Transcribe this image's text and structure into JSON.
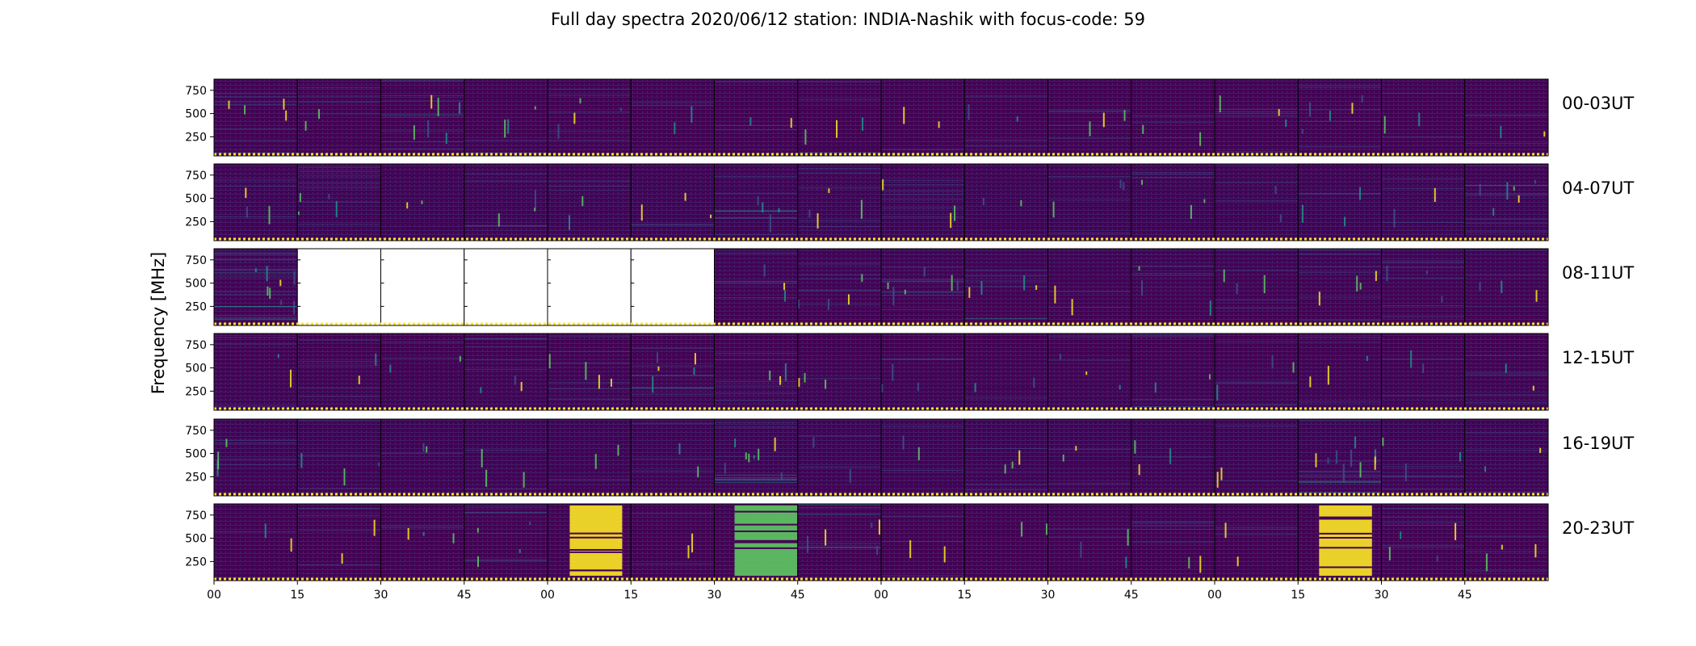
{
  "chart_data": {
    "type": "heatmap",
    "title": "Full day spectra 2020/06/12 station: INDIA-Nashik with focus-code: 59",
    "ylabel": "Frequency [MHz]",
    "xlabel": "",
    "y_ticks": [
      250,
      500,
      750
    ],
    "ylim": [
      45,
      870
    ],
    "x_tick_labels": [
      "00",
      "15",
      "30",
      "45",
      "00",
      "15",
      "30",
      "45",
      "00",
      "15",
      "30",
      "45",
      "00",
      "15",
      "30",
      "45"
    ],
    "panels_per_row": 16,
    "minutes_per_panel": 15,
    "colormap": "viridis",
    "rows": [
      {
        "label": "00-03UT",
        "missing_panels": [],
        "intensity": [
          0.18,
          0.12,
          0.3,
          0.14,
          0.2,
          0.12,
          0.1,
          0.16,
          0.08,
          0.12,
          0.14,
          0.1,
          0.14,
          0.24,
          0.12,
          0.12
        ]
      },
      {
        "label": "04-07UT",
        "missing_panels": [],
        "intensity": [
          0.16,
          0.2,
          0.12,
          0.14,
          0.1,
          0.16,
          0.22,
          0.18,
          0.14,
          0.12,
          0.14,
          0.16,
          0.12,
          0.14,
          0.1,
          0.28
        ]
      },
      {
        "label": "08-11UT",
        "missing_panels": [
          1,
          2,
          3,
          4,
          5
        ],
        "intensity": [
          0.4,
          0,
          0,
          0,
          0,
          0,
          0.14,
          0.22,
          0.3,
          0.22,
          0.12,
          0.14,
          0.14,
          0.2,
          0.16,
          0.14
        ]
      },
      {
        "label": "12-15UT",
        "missing_panels": [],
        "intensity": [
          0.12,
          0.12,
          0.12,
          0.16,
          0.18,
          0.24,
          0.14,
          0.16,
          0.16,
          0.12,
          0.14,
          0.12,
          0.16,
          0.14,
          0.12,
          0.12
        ]
      },
      {
        "label": "16-19UT",
        "missing_panels": [],
        "intensity": [
          0.14,
          0.14,
          0.12,
          0.16,
          0.12,
          0.12,
          0.4,
          0.1,
          0.1,
          0.16,
          0.12,
          0.14,
          0.12,
          0.45,
          0.16,
          0.1
        ]
      },
      {
        "label": "20-23UT",
        "missing_panels": [],
        "intensity": [
          0.12,
          0.12,
          0.14,
          0.18,
          0.82,
          0.12,
          0.6,
          0.26,
          0.1,
          0.1,
          0.14,
          0.12,
          0.12,
          0.9,
          0.18,
          0.14
        ]
      }
    ],
    "colors": {
      "low": "#440154",
      "mid_low": "#3b528b",
      "mid": "#21918c",
      "mid_high": "#5ec962",
      "high": "#fde725",
      "missing": "#ffffff"
    }
  }
}
